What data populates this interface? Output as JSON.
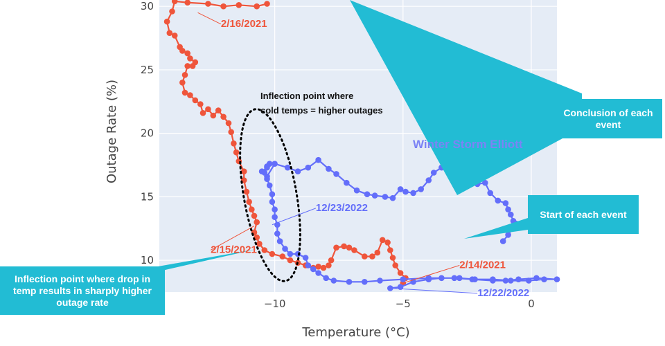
{
  "chart_data": {
    "type": "scatter",
    "xlabel": "Temperature (°C)",
    "ylabel": "Outage Rate (%)",
    "xlim": [
      -14.5,
      1
    ],
    "ylim": [
      7.5,
      30.5
    ],
    "x_ticks": [
      -10,
      -5,
      0
    ],
    "y_ticks": [
      10,
      15,
      20,
      25,
      30
    ],
    "grid": true,
    "series": [
      {
        "key": "uri",
        "color": "#ef553b",
        "points": [
          [
            -5.0,
            8.2
          ],
          [
            -4.9,
            8.6
          ],
          [
            -5.1,
            9.0
          ],
          [
            -5.3,
            9.6
          ],
          [
            -5.4,
            10.2
          ],
          [
            -5.5,
            10.8
          ],
          [
            -5.6,
            11.4
          ],
          [
            -5.8,
            11.6
          ],
          [
            -6.0,
            10.6
          ],
          [
            -6.2,
            10.3
          ],
          [
            -6.5,
            10.3
          ],
          [
            -6.9,
            10.8
          ],
          [
            -7.1,
            11.0
          ],
          [
            -7.3,
            11.1
          ],
          [
            -7.6,
            11.0
          ],
          [
            -7.8,
            10.0
          ],
          [
            -7.9,
            9.6
          ],
          [
            -8.1,
            9.4
          ],
          [
            -8.3,
            9.5
          ],
          [
            -8.5,
            9.4
          ],
          [
            -8.8,
            9.6
          ],
          [
            -9.1,
            9.8
          ],
          [
            -9.4,
            10.0
          ],
          [
            -9.7,
            10.3
          ],
          [
            -10.1,
            10.5
          ],
          [
            -10.4,
            10.8
          ],
          [
            -10.6,
            11.3
          ],
          [
            -10.7,
            11.8
          ],
          [
            -10.8,
            12.2
          ],
          [
            -10.7,
            13.0
          ],
          [
            -10.8,
            13.5
          ],
          [
            -10.9,
            14.0
          ],
          [
            -11.0,
            14.6
          ],
          [
            -11.1,
            15.4
          ],
          [
            -11.2,
            16.3
          ],
          [
            -11.2,
            17.0
          ],
          [
            -11.4,
            17.8
          ],
          [
            -11.5,
            18.5
          ],
          [
            -11.6,
            19.2
          ],
          [
            -11.7,
            20.1
          ],
          [
            -11.8,
            20.8
          ],
          [
            -12.0,
            21.3
          ],
          [
            -12.2,
            21.8
          ],
          [
            -12.4,
            21.4
          ],
          [
            -12.6,
            21.9
          ],
          [
            -12.8,
            21.6
          ],
          [
            -12.9,
            22.3
          ],
          [
            -13.1,
            22.6
          ],
          [
            -13.3,
            23.0
          ],
          [
            -13.5,
            23.2
          ],
          [
            -13.6,
            24.0
          ],
          [
            -13.5,
            24.6
          ],
          [
            -13.4,
            25.3
          ],
          [
            -13.2,
            25.3
          ],
          [
            -13.1,
            25.6
          ],
          [
            -13.3,
            25.9
          ],
          [
            -13.4,
            26.3
          ],
          [
            -13.6,
            26.5
          ],
          [
            -13.7,
            26.8
          ],
          [
            -13.9,
            27.7
          ],
          [
            -14.1,
            27.9
          ],
          [
            -14.2,
            28.8
          ],
          [
            -14.0,
            29.6
          ],
          [
            -13.9,
            30.4
          ],
          [
            -13.4,
            30.3
          ],
          [
            -12.6,
            30.2
          ],
          [
            -12.0,
            30.0
          ],
          [
            -11.4,
            30.1
          ],
          [
            -10.7,
            30.0
          ],
          [
            -10.3,
            30.2
          ]
        ]
      },
      {
        "key": "elliott",
        "color": "#636efa",
        "points": [
          [
            -5.5,
            7.8
          ],
          [
            -5.1,
            7.9
          ],
          [
            -4.6,
            8.3
          ],
          [
            -4.0,
            8.5
          ],
          [
            -3.5,
            8.6
          ],
          [
            -2.8,
            8.6
          ],
          [
            -2.2,
            8.5
          ],
          [
            -1.5,
            8.5
          ],
          [
            -0.8,
            8.4
          ],
          [
            -0.1,
            8.4
          ],
          [
            0.5,
            8.5
          ],
          [
            1.0,
            8.5
          ],
          [
            0.2,
            8.6
          ],
          [
            -0.5,
            8.5
          ],
          [
            -1.0,
            8.4
          ],
          [
            -1.5,
            8.4
          ],
          [
            -2.3,
            8.5
          ],
          [
            -3.0,
            8.6
          ],
          [
            -4.0,
            8.6
          ],
          [
            -5.0,
            8.5
          ],
          [
            -5.9,
            8.4
          ],
          [
            -6.5,
            8.3
          ],
          [
            -7.1,
            8.3
          ],
          [
            -7.7,
            8.4
          ],
          [
            -8.0,
            8.6
          ],
          [
            -8.3,
            9.0
          ],
          [
            -8.5,
            9.3
          ],
          [
            -8.7,
            9.6
          ],
          [
            -8.8,
            10.2
          ],
          [
            -9.1,
            10.5
          ],
          [
            -9.4,
            10.5
          ],
          [
            -9.6,
            10.9
          ],
          [
            -9.8,
            11.5
          ],
          [
            -9.9,
            12.1
          ],
          [
            -9.9,
            12.8
          ],
          [
            -10.0,
            13.4
          ],
          [
            -10.0,
            14.0
          ],
          [
            -10.1,
            14.6
          ],
          [
            -10.1,
            15.2
          ],
          [
            -10.2,
            15.9
          ],
          [
            -10.3,
            16.4
          ],
          [
            -10.4,
            16.9
          ],
          [
            -10.3,
            17.4
          ],
          [
            -10.2,
            17.6
          ],
          [
            -10.3,
            17.3
          ],
          [
            -10.5,
            17.0
          ],
          [
            -10.3,
            16.6
          ],
          [
            -10.0,
            17.6
          ],
          [
            -9.5,
            17.3
          ],
          [
            -9.1,
            17.0
          ],
          [
            -8.7,
            17.3
          ],
          [
            -8.3,
            17.9
          ],
          [
            -7.9,
            17.2
          ],
          [
            -7.6,
            16.8
          ],
          [
            -7.2,
            16.1
          ],
          [
            -6.8,
            15.5
          ],
          [
            -6.4,
            15.2
          ],
          [
            -6.1,
            15.1
          ],
          [
            -5.7,
            15.0
          ],
          [
            -5.4,
            14.9
          ],
          [
            -5.1,
            15.6
          ],
          [
            -4.9,
            15.4
          ],
          [
            -4.6,
            15.3
          ],
          [
            -4.3,
            15.6
          ],
          [
            -4.0,
            16.3
          ],
          [
            -3.8,
            16.9
          ],
          [
            -3.5,
            17.3
          ],
          [
            -3.3,
            17.3
          ],
          [
            -3.0,
            17.1
          ],
          [
            -2.7,
            16.6
          ],
          [
            -2.4,
            16.3
          ],
          [
            -2.1,
            16.0
          ],
          [
            -1.8,
            16.1
          ],
          [
            -1.6,
            15.3
          ],
          [
            -1.3,
            14.7
          ],
          [
            -1.0,
            14.5
          ],
          [
            -0.9,
            14.0
          ],
          [
            -0.8,
            13.6
          ],
          [
            -0.7,
            13.1
          ],
          [
            -0.6,
            12.9
          ],
          [
            -0.9,
            12.0
          ],
          [
            -1.1,
            11.5
          ]
        ]
      }
    ],
    "point_labels": [
      {
        "key": "l1",
        "text": "2/16/2021",
        "color": "#ef553b",
        "x": -13.0,
        "y": 29.5,
        "tx": -12.1,
        "ty": 28.6
      },
      {
        "key": "l2",
        "text": "12/23/2022",
        "color": "#636efa",
        "x": -10.1,
        "y": 12.8,
        "tx": -8.4,
        "ty": 14.1
      },
      {
        "key": "l3",
        "text": "2/15/2021",
        "color": "#ef553b",
        "x": -10.8,
        "y": 12.7,
        "tx": -12.5,
        "ty": 10.8
      },
      {
        "key": "l4",
        "text": "2/14/2021",
        "color": "#ef553b",
        "x": -5.0,
        "y": 8.2,
        "tx": -2.8,
        "ty": 9.6
      },
      {
        "key": "l5",
        "text": "12/22/2022",
        "color": "#636efa",
        "x": -5.5,
        "y": 7.8,
        "tx": -2.1,
        "ty": 7.4
      }
    ],
    "annotations": {
      "storm_name": "Winter Storm Elliott",
      "inflection_note_line1": "Inflection point where",
      "inflection_note_line2": "cold temps = higher outages"
    }
  },
  "callouts": {
    "conclusion": "Conclusion of each event",
    "start": "Start of each event",
    "inflection": "Inflection point where drop in temp results in sharply higher outage rate"
  },
  "colors": {
    "plot_bg": "#e5ecf6",
    "callout": "#22bcd4"
  }
}
